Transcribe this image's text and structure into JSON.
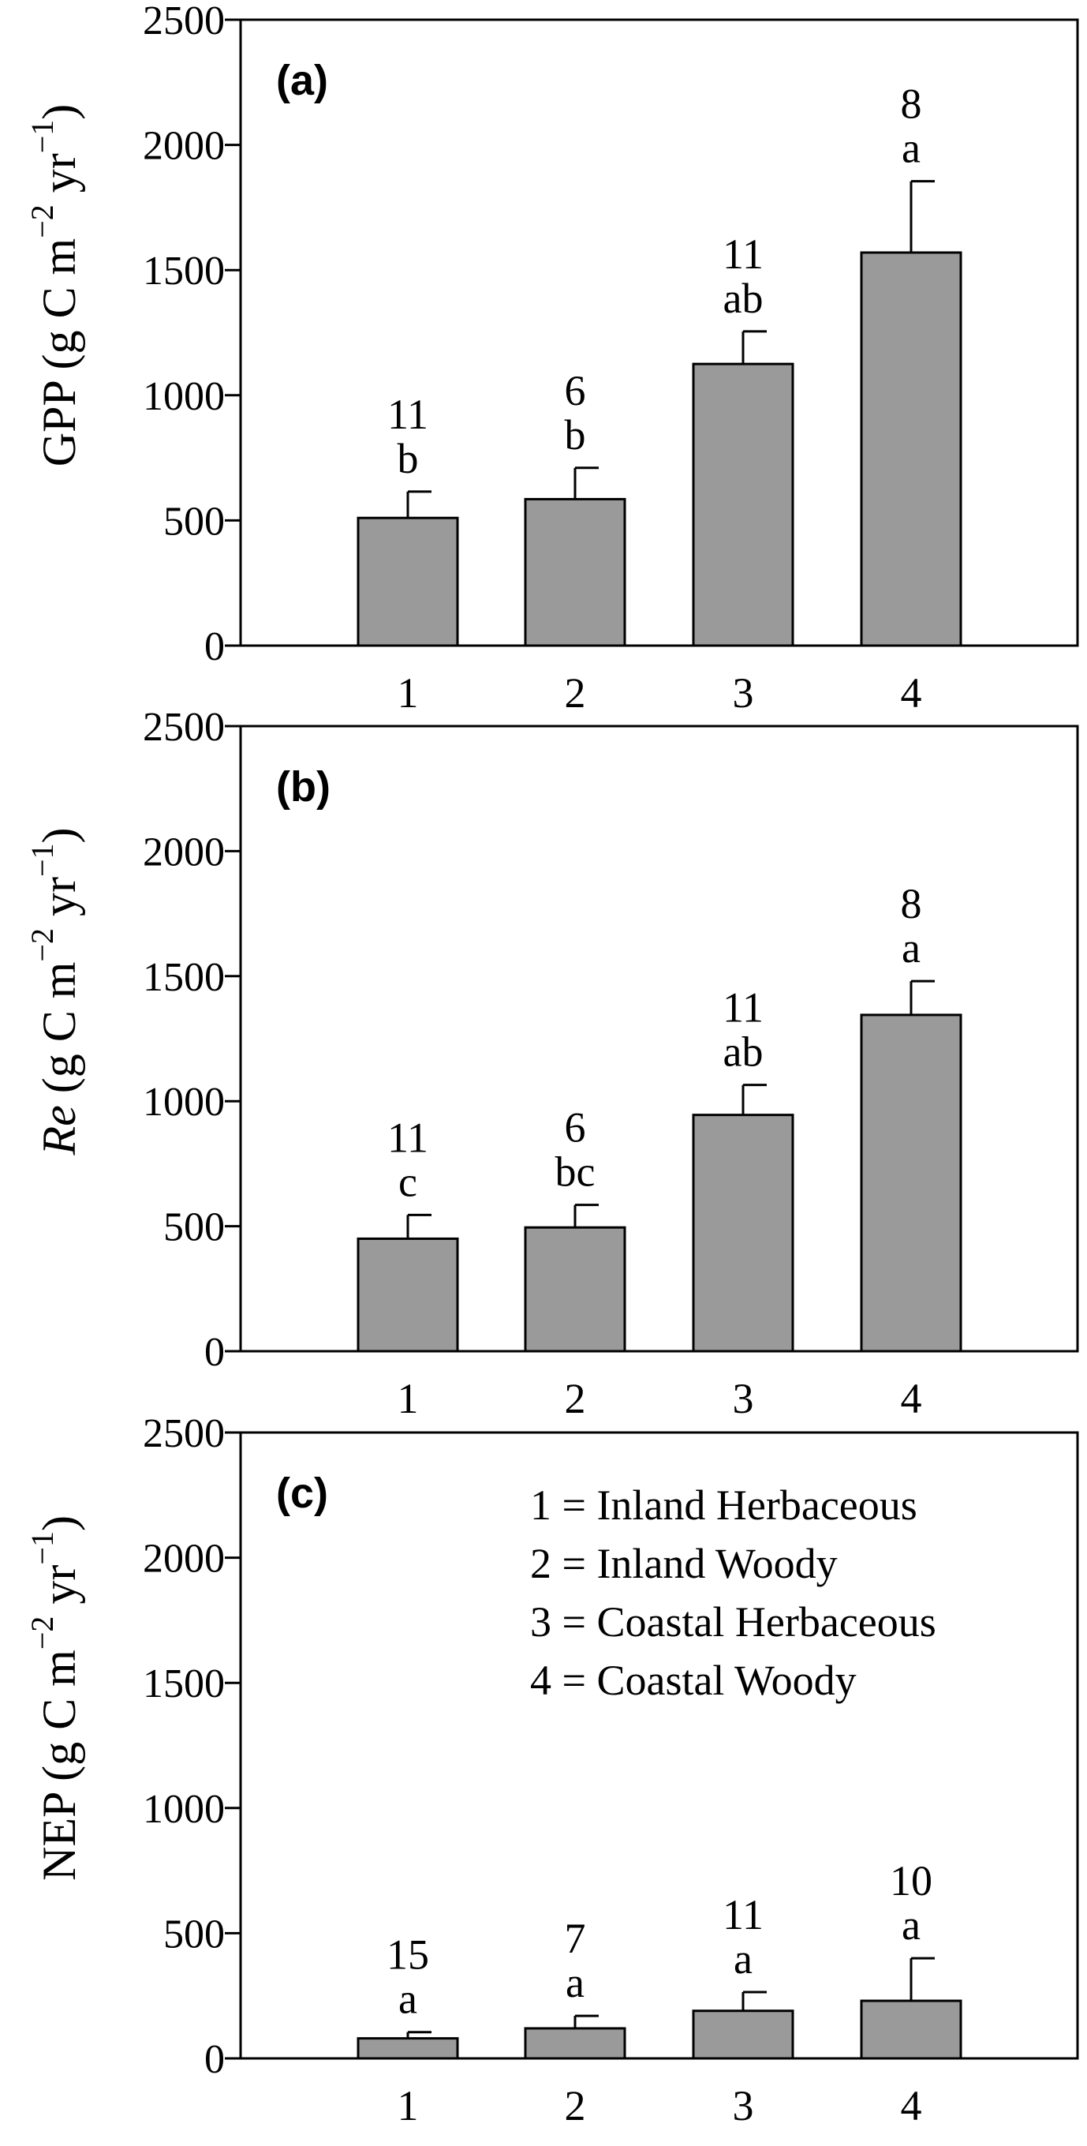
{
  "chart_data": [
    {
      "type": "bar",
      "panel_label": "(a)",
      "ylabel": {
        "main": "GPP",
        "italic": false,
        "unit_open": " (g C m",
        "sup1": "−2",
        "unit_mid": " yr",
        "sup2": "−1",
        "unit_close": ")"
      },
      "categories": [
        "1",
        "2",
        "3",
        "4"
      ],
      "values": [
        510,
        585,
        1125,
        1570
      ],
      "errors": [
        105,
        125,
        130,
        285
      ],
      "letters": [
        "b",
        "b",
        "ab",
        "a"
      ],
      "n": [
        "11",
        "6",
        "11",
        "8"
      ],
      "ylim": [
        0,
        2500
      ],
      "yticks": [
        "0",
        "500",
        "1000",
        "1500",
        "2000",
        "2500"
      ]
    },
    {
      "type": "bar",
      "panel_label": "(b)",
      "ylabel": {
        "main": "Re",
        "italic": true,
        "unit_open": " (g C m",
        "sup1": "−2",
        "unit_mid": " yr",
        "sup2": "−1",
        "unit_close": ")"
      },
      "categories": [
        "1",
        "2",
        "3",
        "4"
      ],
      "values": [
        450,
        495,
        945,
        1345
      ],
      "errors": [
        95,
        90,
        120,
        135
      ],
      "letters": [
        "c",
        "bc",
        "ab",
        "a"
      ],
      "n": [
        "11",
        "6",
        "11",
        "8"
      ],
      "ylim": [
        0,
        2500
      ],
      "yticks": [
        "0",
        "500",
        "1000",
        "1500",
        "2000",
        "2500"
      ]
    },
    {
      "type": "bar",
      "panel_label": "(c)",
      "ylabel": {
        "main": "NEP",
        "italic": false,
        "unit_open": " (g C m",
        "sup1": "−2",
        "unit_mid": " yr",
        "sup2": "−1",
        "unit_close": ")"
      },
      "categories": [
        "1",
        "2",
        "3",
        "4"
      ],
      "values": [
        80,
        120,
        190,
        230
      ],
      "errors": [
        25,
        50,
        75,
        170
      ],
      "letters": [
        "a",
        "a",
        "a",
        "a"
      ],
      "n": [
        "15",
        "7",
        "11",
        "10"
      ],
      "ylim": [
        0,
        2500
      ],
      "yticks": [
        "0",
        "500",
        "1000",
        "1500",
        "2000",
        "2500"
      ],
      "legend": [
        "1 = Inland Herbaceous",
        "2 = Inland Woody",
        "3 = Coastal Herbaceous",
        "4 = Coastal Woody"
      ]
    }
  ],
  "colors": {
    "bar_fill": "#9a9a9a",
    "stroke": "#000000",
    "background": "#ffffff"
  }
}
